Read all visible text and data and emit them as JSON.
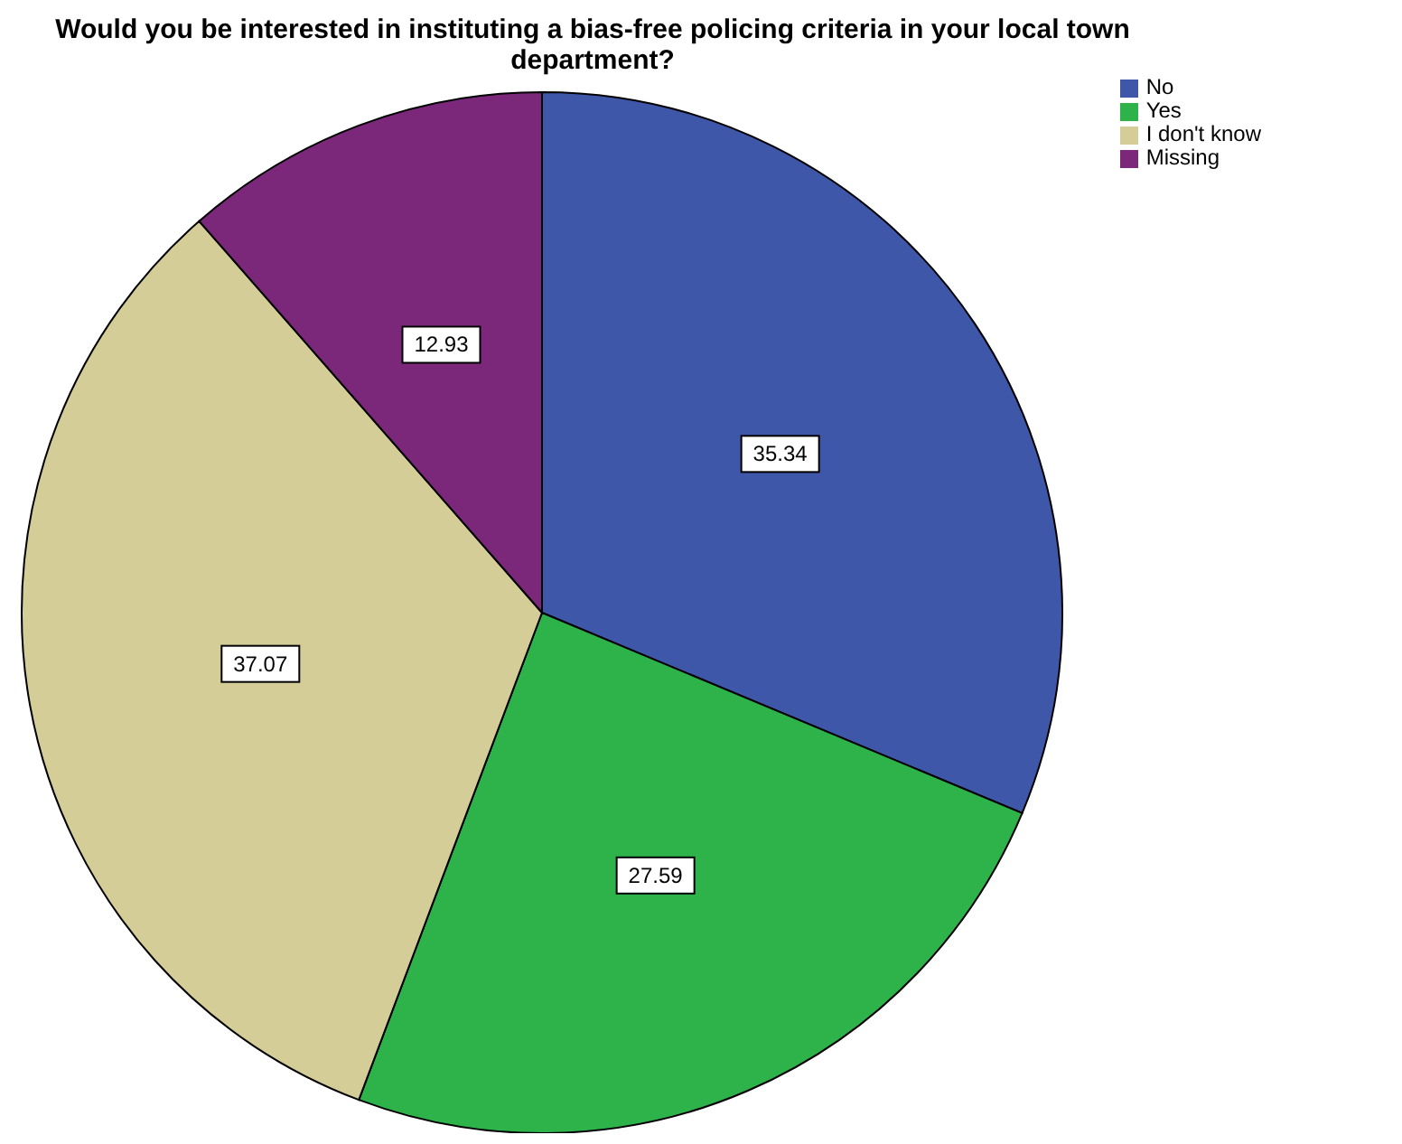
{
  "chart_data": {
    "type": "pie",
    "title": "Would you be interested in instituting a bias-free policing criteria in your local town department?",
    "categories": [
      "No",
      "Yes",
      "I don't know",
      "Missing"
    ],
    "values": [
      35.34,
      27.59,
      37.07,
      12.93
    ],
    "colors": [
      "#3f57a9",
      "#2eb34b",
      "#d5cd97",
      "#7b287b"
    ],
    "data_labels": true,
    "legend": "top right"
  }
}
